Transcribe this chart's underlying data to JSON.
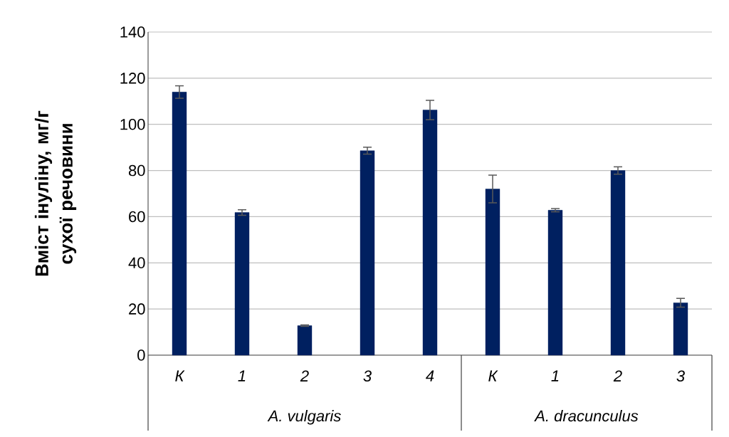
{
  "chart_data": {
    "type": "bar",
    "ylabel": "Вміст інуліну, мг/г сухої речовини",
    "categories": [
      "К",
      "1",
      "2",
      "3",
      "4",
      "К",
      "1",
      "2",
      "3"
    ],
    "values": [
      114.0,
      61.8,
      12.8,
      88.6,
      106.2,
      72.0,
      62.8,
      80.0,
      22.7
    ],
    "errors": [
      2.7,
      1.2,
      0.3,
      1.5,
      4.2,
      6.0,
      0.7,
      1.6,
      1.9
    ],
    "color": "#002060",
    "ylim": [
      0,
      140
    ],
    "yticks": [
      0,
      20,
      40,
      60,
      80,
      100,
      120,
      140
    ],
    "grid": "y",
    "annotations": [
      "A. vulgaris",
      "A. dracunculus"
    ]
  }
}
